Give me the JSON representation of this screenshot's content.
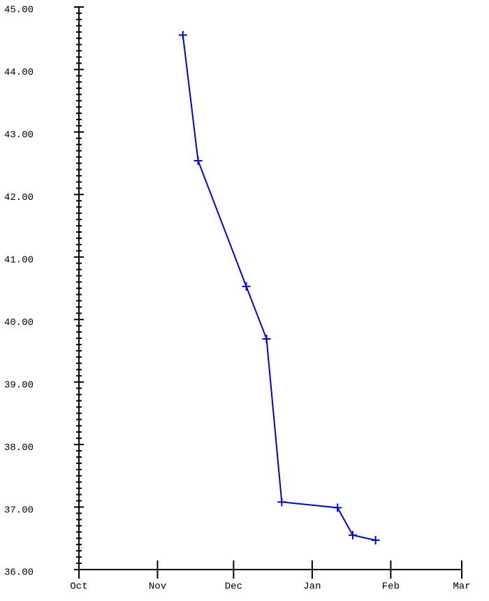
{
  "chart_data": {
    "type": "line",
    "x": [
      41,
      47,
      66,
      74,
      80,
      102,
      108,
      117
    ],
    "series": [
      {
        "color": "#0000dd",
        "values": [
          44.55,
          42.54,
          40.53,
          39.69,
          37.08,
          36.99,
          36.55,
          36.47
        ]
      }
    ],
    "xlim": [
      0,
      151
    ],
    "xticks": [
      {
        "value": 0,
        "label": "Oct"
      },
      {
        "value": 31,
        "label": "Nov"
      },
      {
        "value": 61,
        "label": "Dec"
      },
      {
        "value": 92,
        "label": "Jan"
      },
      {
        "value": 123,
        "label": "Feb"
      },
      {
        "value": 151,
        "label": "Mar"
      }
    ],
    "ylim": [
      36,
      45
    ],
    "yticks": [
      {
        "value": 36,
        "label": "36.00"
      },
      {
        "value": 37,
        "label": "37.00"
      },
      {
        "value": 38,
        "label": "38.00"
      },
      {
        "value": 39,
        "label": "39.00"
      },
      {
        "value": 40,
        "label": "40.00"
      },
      {
        "value": 41,
        "label": "41.00"
      },
      {
        "value": 42,
        "label": "42.00"
      },
      {
        "value": 43,
        "label": "43.00"
      },
      {
        "value": 44,
        "label": "44.00"
      },
      {
        "value": 45,
        "label": "45.00"
      }
    ],
    "y_minor_divisions": 10,
    "markers": "plus"
  }
}
